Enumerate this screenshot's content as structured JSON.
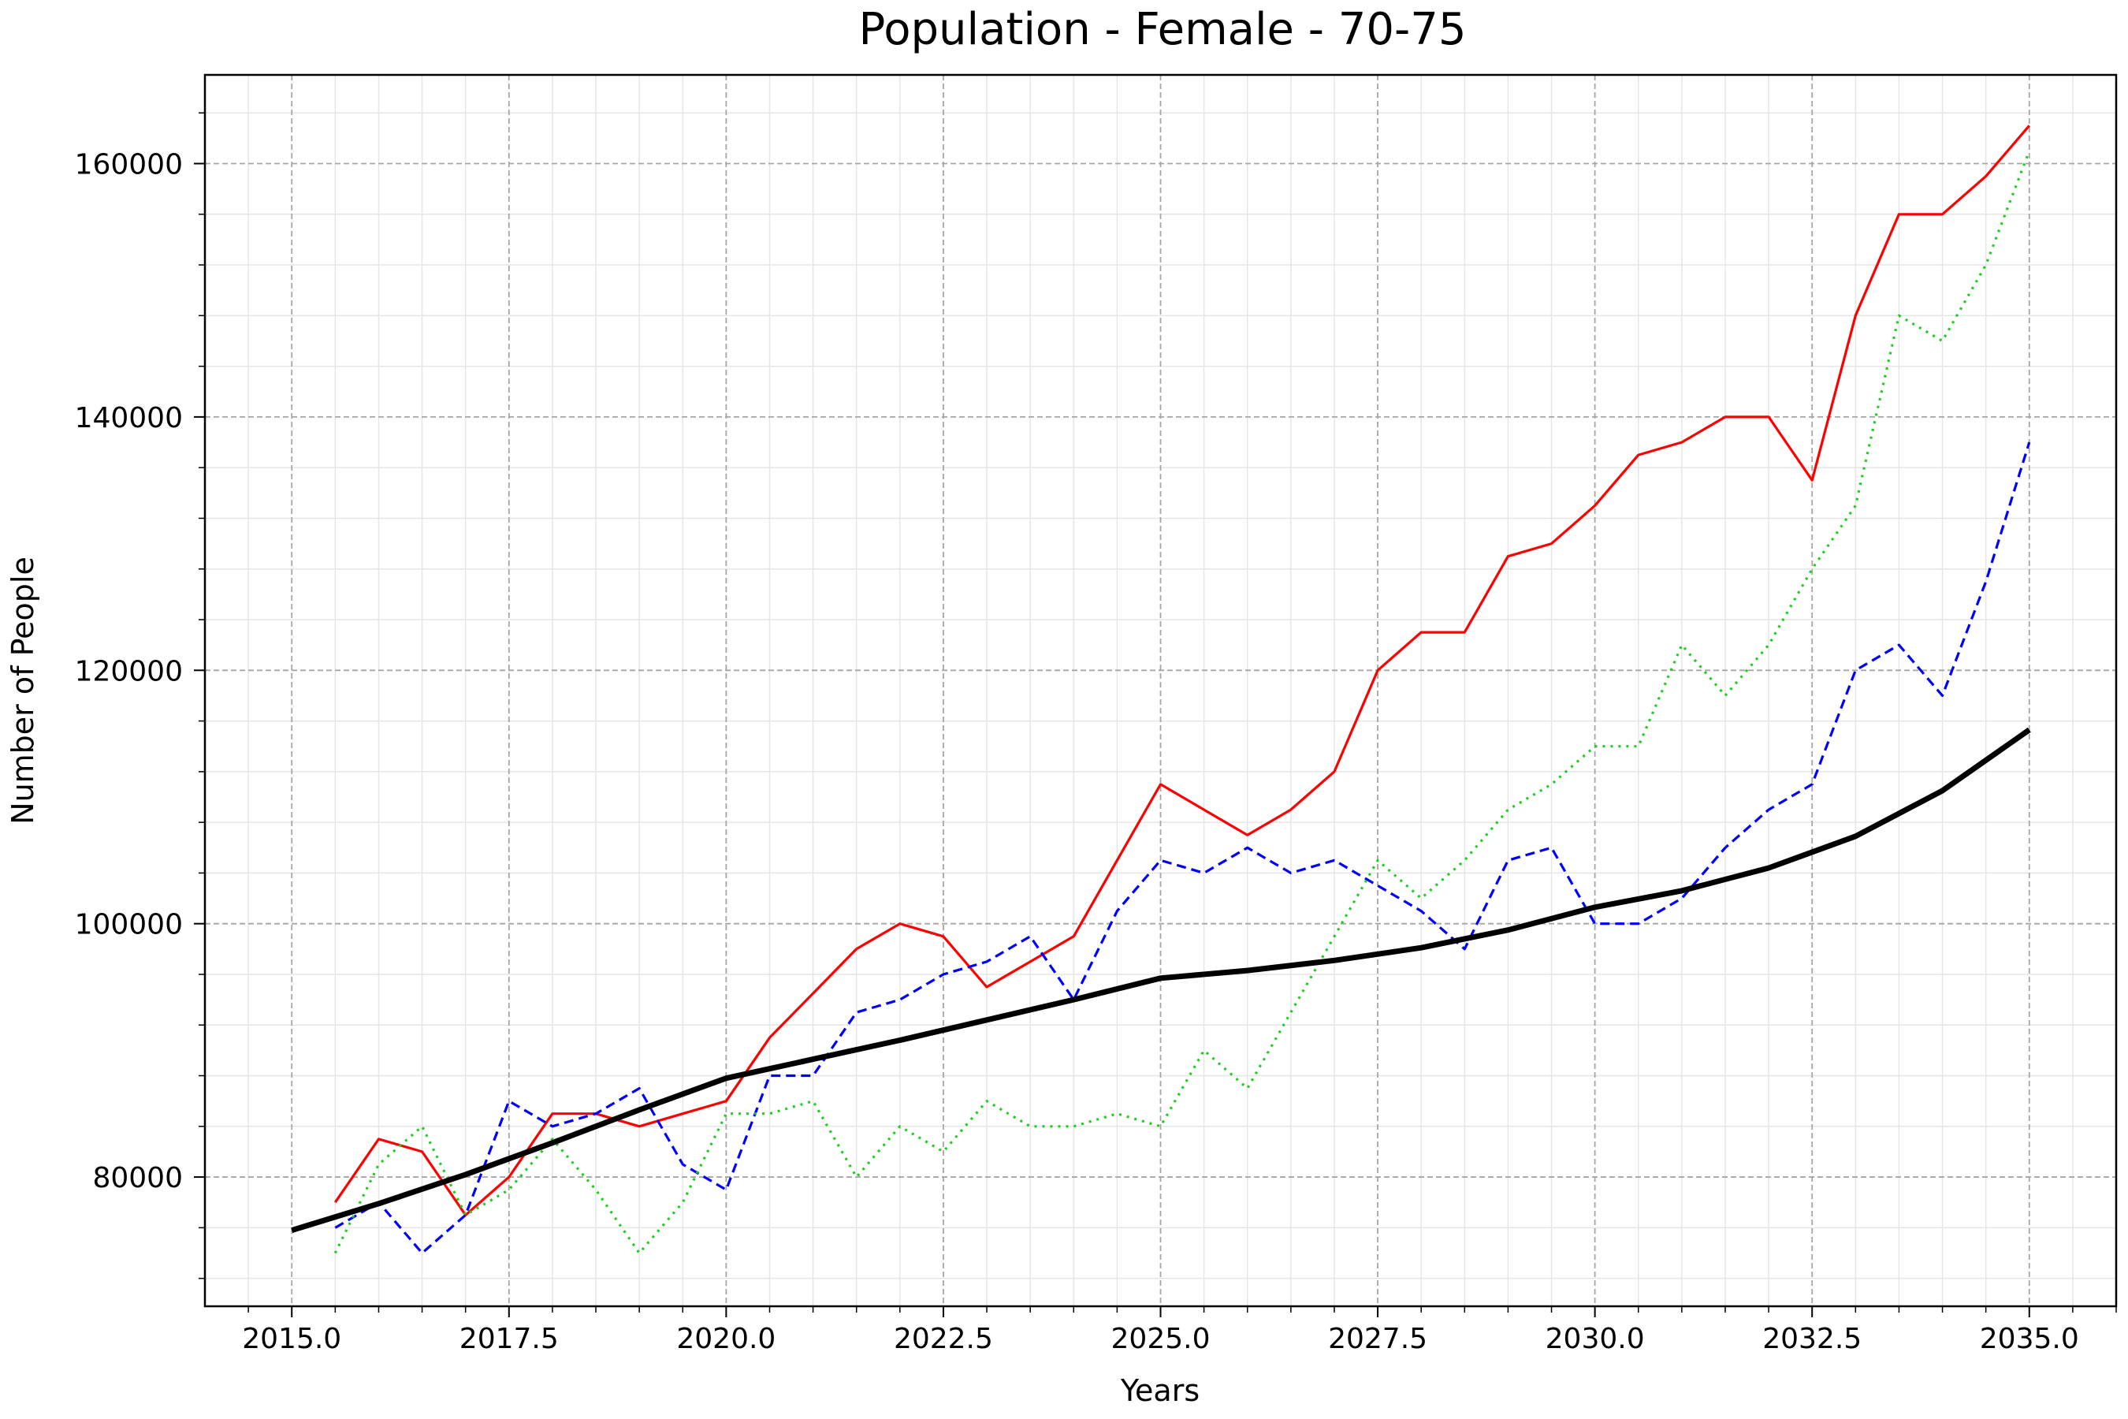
{
  "chart_data": {
    "type": "line",
    "title": "Population - Female - 70-75",
    "xlabel": "Years",
    "ylabel": "Number of People",
    "xlim": [
      2014.0,
      2036.0
    ],
    "ylim": [
      69800,
      167000
    ],
    "x_ticks": [
      2015.0,
      2017.5,
      2020.0,
      2022.5,
      2025.0,
      2027.5,
      2030.0,
      2032.5,
      2035.0
    ],
    "x_tick_labels": [
      "2015.0",
      "2017.5",
      "2020.0",
      "2022.5",
      "2025.0",
      "2027.5",
      "2030.0",
      "2032.5",
      "2035.0"
    ],
    "y_ticks": [
      80000,
      100000,
      120000,
      140000,
      160000
    ],
    "y_tick_labels": [
      "80000",
      "100000",
      "120000",
      "140000",
      "160000"
    ],
    "grid": true,
    "legend": "none",
    "series": [
      {
        "color": "#ff0000",
        "style": "solid",
        "width": "thin",
        "x": [
          2015.5,
          2016.0,
          2016.5,
          2017.0,
          2017.5,
          2018.0,
          2018.5,
          2019.0,
          2019.5,
          2020.0,
          2020.5,
          2021.0,
          2021.5,
          2022.0,
          2022.5,
          2023.0,
          2023.5,
          2024.0,
          2024.5,
          2025.0,
          2025.5,
          2026.0,
          2026.5,
          2027.0,
          2027.5,
          2028.0,
          2028.5,
          2029.0,
          2029.5,
          2030.0,
          2030.5,
          2031.0,
          2031.5,
          2032.0,
          2032.5,
          2033.0,
          2033.5,
          2034.0,
          2034.5,
          2035.0
        ],
        "y": [
          78000,
          83000,
          82000,
          77000,
          80000,
          85000,
          85000,
          84000,
          85000,
          86000,
          91000,
          94500,
          98000,
          100000,
          99000,
          95000,
          97000,
          99000,
          105000,
          111000,
          109000,
          107000,
          109000,
          112000,
          120000,
          123000,
          123000,
          129000,
          130000,
          133000,
          137000,
          138000,
          140000,
          140000,
          135000,
          148000,
          156000,
          156000,
          159000,
          163000
        ]
      },
      {
        "color": "#0000ff",
        "style": "dashed",
        "width": "thin",
        "x": [
          2015.5,
          2016.0,
          2016.5,
          2017.0,
          2017.5,
          2018.0,
          2018.5,
          2019.0,
          2019.5,
          2020.0,
          2020.5,
          2021.0,
          2021.5,
          2022.0,
          2022.5,
          2023.0,
          2023.5,
          2024.0,
          2024.5,
          2025.0,
          2025.5,
          2026.0,
          2026.5,
          2027.0,
          2027.5,
          2028.0,
          2028.5,
          2029.0,
          2029.5,
          2030.0,
          2030.5,
          2031.0,
          2031.5,
          2032.0,
          2032.5,
          2033.0,
          2033.5,
          2034.0,
          2034.5,
          2035.0
        ],
        "y": [
          76000,
          78000,
          74000,
          77000,
          86000,
          84000,
          85000,
          87000,
          81000,
          79000,
          88000,
          88000,
          93000,
          94000,
          96000,
          97000,
          99000,
          94000,
          101000,
          105000,
          104000,
          106000,
          104000,
          105000,
          103000,
          101000,
          98000,
          105000,
          106000,
          100000,
          100000,
          102000,
          106000,
          109000,
          111000,
          120000,
          122000,
          118000,
          127000,
          138000
        ]
      },
      {
        "color": "#22cc22",
        "style": "dotted",
        "width": "thin",
        "x": [
          2015.5,
          2016.0,
          2016.5,
          2017.0,
          2017.5,
          2018.0,
          2018.5,
          2019.0,
          2019.5,
          2020.0,
          2020.5,
          2021.0,
          2021.5,
          2022.0,
          2022.5,
          2023.0,
          2023.5,
          2024.0,
          2024.5,
          2025.0,
          2025.5,
          2026.0,
          2026.5,
          2027.0,
          2027.5,
          2028.0,
          2028.5,
          2029.0,
          2029.5,
          2030.0,
          2030.5,
          2031.0,
          2031.5,
          2032.0,
          2032.5,
          2033.0,
          2033.5,
          2034.0,
          2034.5,
          2035.0
        ],
        "y": [
          74000,
          81000,
          84000,
          77000,
          79000,
          83000,
          79000,
          74000,
          78000,
          85000,
          85000,
          86000,
          80000,
          84000,
          82000,
          86000,
          84000,
          84000,
          85000,
          84000,
          90000,
          87000,
          93000,
          99000,
          105000,
          102000,
          105000,
          109000,
          111000,
          114000,
          114000,
          122000,
          118000,
          122000,
          128000,
          133000,
          148000,
          146000,
          152000,
          161000
        ]
      },
      {
        "color": "#000000",
        "style": "solid",
        "width": "thick",
        "x": [
          2015.0,
          2016.0,
          2017.0,
          2018.0,
          2019.0,
          2020.0,
          2021.0,
          2022.0,
          2023.0,
          2024.0,
          2025.0,
          2026.0,
          2027.0,
          2028.0,
          2029.0,
          2030.0,
          2031.0,
          2032.0,
          2033.0,
          2034.0,
          2035.0
        ],
        "y": [
          75800,
          77900,
          80200,
          82700,
          85300,
          87800,
          89300,
          90800,
          92400,
          94000,
          95700,
          96300,
          97100,
          98100,
          99500,
          101300,
          102600,
          104400,
          106900,
          110500,
          115300
        ]
      }
    ]
  }
}
